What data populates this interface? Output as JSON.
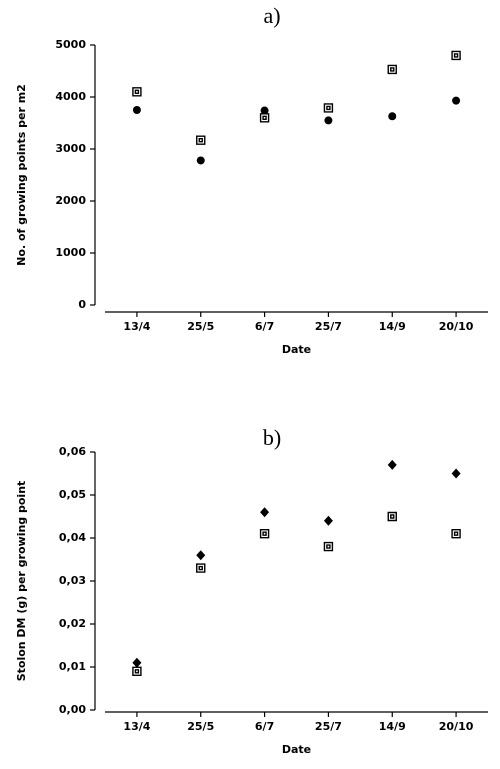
{
  "chart_data": [
    {
      "type": "scatter",
      "title": "a)",
      "xlabel": "Date",
      "ylabel": "No. of growing points per m2",
      "categories": [
        "13/4",
        "25/5",
        "6/7",
        "25/7",
        "14/9",
        "20/10"
      ],
      "series": [
        {
          "color": "#000000",
          "marker": "circle",
          "values": [
            3750,
            2780,
            3740,
            3550,
            3630,
            3930
          ]
        },
        {
          "color": "#000000",
          "marker": "square",
          "values": [
            4100,
            3170,
            3600,
            3790,
            4530,
            4800
          ]
        }
      ],
      "ylim": [
        0,
        5000
      ],
      "yticks": [
        0,
        1000,
        2000,
        3000,
        4000,
        5000
      ]
    },
    {
      "type": "scatter",
      "title": "b)",
      "xlabel": "Date",
      "ylabel": "Stolon DM (g) per growing point",
      "categories": [
        "13/4",
        "25/5",
        "6/7",
        "25/7",
        "14/9",
        "20/10"
      ],
      "series": [
        {
          "color": "#000000",
          "marker": "diamond",
          "values": [
            0.011,
            0.036,
            0.046,
            0.044,
            0.057,
            0.055
          ]
        },
        {
          "color": "#000000",
          "marker": "square",
          "values": [
            0.009,
            0.033,
            0.041,
            0.038,
            0.045,
            0.041
          ]
        }
      ],
      "ylim": [
        0,
        0.06
      ],
      "yticks": [
        {
          "value": 0,
          "label": "0,00"
        },
        {
          "value": 0.01,
          "label": "0,01"
        },
        {
          "value": 0.02,
          "label": "0,02"
        },
        {
          "value": 0.03,
          "label": "0,03"
        },
        {
          "value": 0.04,
          "label": "0,04"
        },
        {
          "value": 0.05,
          "label": "0,05"
        },
        {
          "value": 0.06,
          "label": "0,06"
        }
      ]
    }
  ]
}
